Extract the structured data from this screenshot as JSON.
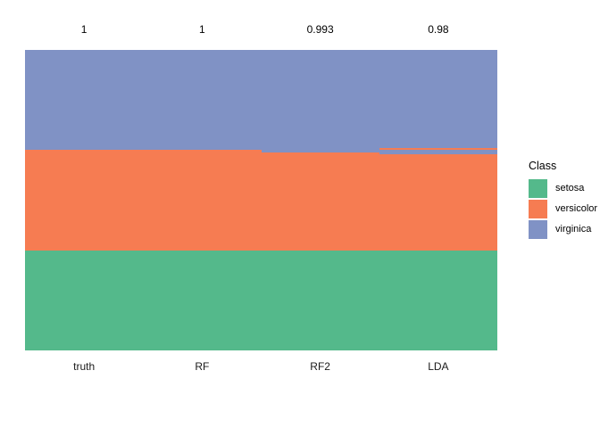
{
  "chart_data": {
    "type": "heatmap",
    "title": "",
    "xlabel": "",
    "ylabel": "",
    "n_observations": 150,
    "grid": false,
    "legend_position": "right",
    "columns": [
      {
        "label": "truth",
        "accuracy_label": "1",
        "segments_top_down": [
          {
            "class": "virginica",
            "n": 50
          },
          {
            "class": "versicolor",
            "n": 50
          },
          {
            "class": "setosa",
            "n": 50
          }
        ]
      },
      {
        "label": "RF",
        "accuracy_label": "1",
        "segments_top_down": [
          {
            "class": "virginica",
            "n": 50
          },
          {
            "class": "versicolor",
            "n": 50
          },
          {
            "class": "setosa",
            "n": 50
          }
        ]
      },
      {
        "label": "RF2",
        "accuracy_label": "0.993",
        "segments_top_down": [
          {
            "class": "virginica",
            "n": 51
          },
          {
            "class": "versicolor",
            "n": 49
          },
          {
            "class": "setosa",
            "n": 50
          }
        ]
      },
      {
        "label": "LDA",
        "accuracy_label": "0.98",
        "segments_top_down": [
          {
            "class": "virginica",
            "n": 49
          },
          {
            "class": "versicolor",
            "n": 1
          },
          {
            "class": "virginica",
            "n": 2
          },
          {
            "class": "versicolor",
            "n": 48
          },
          {
            "class": "setosa",
            "n": 50
          }
        ]
      }
    ],
    "class_colors": {
      "setosa": "#54B98B",
      "versicolor": "#F67C52",
      "virginica": "#8092C5"
    },
    "legend": {
      "title": "Class",
      "entries": [
        "setosa",
        "versicolor",
        "virginica"
      ]
    }
  }
}
